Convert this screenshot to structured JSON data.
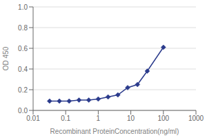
{
  "chart_data": {
    "type": "line",
    "x": [
      0.032,
      0.064,
      0.128,
      0.256,
      0.512,
      1.0,
      2.0,
      4.0,
      8.0,
      16.0,
      32.0,
      100.0
    ],
    "values": [
      0.09,
      0.09,
      0.09,
      0.1,
      0.1,
      0.11,
      0.13,
      0.15,
      0.22,
      0.25,
      0.38,
      0.61
    ],
    "color": "#2B3B8C",
    "marker": "diamond",
    "xlabel": "Recombinant ProteinConcentration(ng/ml)",
    "ylabel": "OD 450",
    "xlim": [
      0.01,
      1000
    ],
    "ylim": [
      0,
      1
    ],
    "xticks": [
      0.01,
      0.1,
      1,
      10,
      100,
      1000
    ],
    "yticks": [
      {
        "value": 0,
        "label": "0.0"
      },
      0.2,
      0.4,
      0.6,
      0.8,
      {
        "value": 1,
        "label": "1.0"
      }
    ],
    "log": "x",
    "grid": "y"
  }
}
